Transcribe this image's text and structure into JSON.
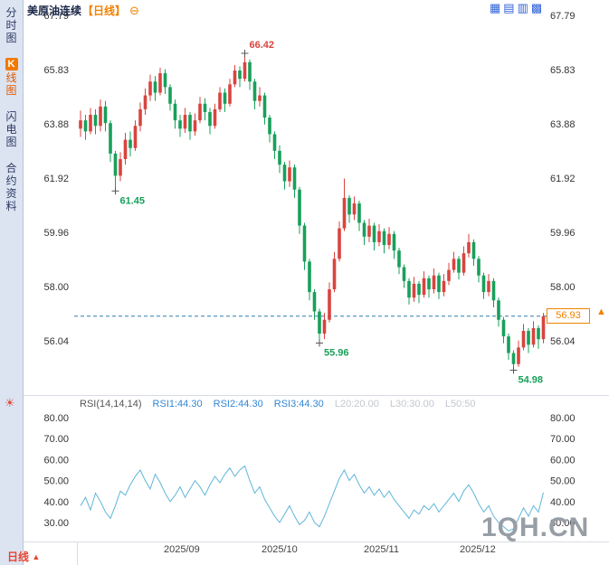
{
  "title": {
    "instrument": "美原油连续",
    "period": "【日线】"
  },
  "icons": {
    "collapse": "⊖",
    "sun": "☀",
    "arrow_up": "▲",
    "layouts": [
      "▦",
      "▤",
      "▥",
      "▩"
    ]
  },
  "sidebar": {
    "items": [
      {
        "label": "分时图"
      },
      {
        "label": "K线图",
        "k": "K",
        "rest": "线图",
        "active": true
      },
      {
        "label": "闪电图"
      },
      {
        "label": "合约资料"
      }
    ]
  },
  "rsi_header": {
    "name": "RSI(14,14,14)",
    "rsi1": "RSI1:44.30",
    "rsi2": "RSI2:44.30",
    "rsi3": "RSI3:44.30",
    "l20": "L20:20.00",
    "l30": "L30:30.00",
    "l50": "L50:50"
  },
  "price_marker": {
    "value": "56.93",
    "color": "#f08200"
  },
  "bottom_bar": {
    "period_label": "日线",
    "arrow": "▲"
  },
  "watermark": "1QH.CN",
  "chart_data": {
    "type": "candlestick+line",
    "main": {
      "title": "美原油连续 日线",
      "y_ticks": [
        "67.79",
        "65.83",
        "63.88",
        "61.92",
        "59.96",
        "58.00",
        "56.04"
      ],
      "ylim": [
        54.6,
        67.79
      ],
      "up_color": "#d9443f",
      "down_color": "#18a05a",
      "current_price": 56.93,
      "current_price_line_color": "#2e7fae",
      "annotations": [
        {
          "text": "66.42",
          "index": 33,
          "pos": "high",
          "color": "#d9443f"
        },
        {
          "text": "61.45",
          "index": 7,
          "pos": "low",
          "color": "#18a05a"
        },
        {
          "text": "55.96",
          "index": 48,
          "pos": "low",
          "color": "#18a05a"
        },
        {
          "text": "54.98",
          "index": 87,
          "pos": "low",
          "color": "#18a05a"
        }
      ],
      "candles": [
        [
          63.7,
          64.35,
          63.4,
          64.0
        ],
        [
          64.0,
          64.2,
          63.3,
          63.6
        ],
        [
          63.6,
          64.45,
          63.5,
          64.2
        ],
        [
          64.2,
          64.4,
          63.5,
          63.8
        ],
        [
          63.8,
          64.75,
          63.6,
          64.5
        ],
        [
          64.5,
          64.7,
          63.6,
          63.9
        ],
        [
          63.9,
          64.0,
          62.5,
          62.8
        ],
        [
          62.8,
          62.9,
          61.45,
          62.0
        ],
        [
          62.0,
          62.85,
          61.8,
          62.6
        ],
        [
          62.6,
          63.55,
          62.4,
          63.3
        ],
        [
          63.3,
          63.6,
          62.7,
          63.0
        ],
        [
          63.0,
          64.0,
          62.9,
          63.8
        ],
        [
          63.8,
          64.65,
          63.6,
          64.4
        ],
        [
          64.4,
          65.15,
          64.2,
          64.9
        ],
        [
          64.9,
          65.65,
          64.7,
          65.4
        ],
        [
          65.4,
          65.6,
          64.7,
          65.0
        ],
        [
          65.0,
          65.9,
          64.9,
          65.7
        ],
        [
          65.7,
          65.85,
          64.95,
          65.2
        ],
        [
          65.2,
          65.3,
          64.35,
          64.6
        ],
        [
          64.6,
          64.75,
          63.7,
          64.0
        ],
        [
          64.0,
          64.2,
          63.4,
          63.7
        ],
        [
          63.7,
          64.45,
          63.55,
          64.2
        ],
        [
          64.2,
          64.3,
          63.3,
          63.6
        ],
        [
          63.6,
          64.25,
          63.45,
          64.0
        ],
        [
          64.0,
          64.85,
          63.9,
          64.6
        ],
        [
          64.6,
          64.8,
          64.0,
          64.3
        ],
        [
          64.3,
          64.45,
          63.5,
          63.8
        ],
        [
          63.8,
          64.6,
          63.7,
          64.4
        ],
        [
          64.4,
          65.2,
          64.3,
          65.0
        ],
        [
          65.0,
          65.15,
          64.3,
          64.6
        ],
        [
          64.6,
          65.5,
          64.5,
          65.3
        ],
        [
          65.3,
          66.0,
          65.2,
          65.8
        ],
        [
          65.8,
          65.95,
          65.2,
          65.5
        ],
        [
          65.5,
          66.42,
          65.4,
          66.1
        ],
        [
          66.1,
          66.2,
          65.1,
          65.4
        ],
        [
          65.4,
          65.5,
          64.4,
          64.7
        ],
        [
          64.7,
          65.2,
          64.5,
          64.9
        ],
        [
          64.9,
          65.0,
          63.85,
          64.1
        ],
        [
          64.1,
          64.2,
          63.2,
          63.5
        ],
        [
          63.5,
          63.6,
          62.6,
          62.9
        ],
        [
          62.9,
          63.1,
          62.1,
          62.4
        ],
        [
          62.4,
          62.5,
          61.5,
          61.8
        ],
        [
          61.8,
          62.55,
          61.6,
          62.3
        ],
        [
          62.3,
          62.4,
          61.2,
          61.5
        ],
        [
          61.5,
          61.6,
          59.9,
          60.2
        ],
        [
          60.2,
          60.3,
          58.6,
          58.9
        ],
        [
          58.9,
          59.0,
          57.5,
          57.8
        ],
        [
          57.8,
          57.9,
          56.8,
          57.1
        ],
        [
          57.1,
          57.2,
          55.96,
          56.3
        ],
        [
          56.3,
          57.05,
          56.1,
          56.8
        ],
        [
          56.8,
          58.15,
          56.7,
          57.9
        ],
        [
          57.9,
          59.25,
          57.8,
          59.0
        ],
        [
          59.0,
          60.35,
          58.9,
          60.1
        ],
        [
          60.1,
          61.9,
          60.0,
          61.2
        ],
        [
          61.2,
          61.3,
          60.3,
          60.6
        ],
        [
          60.6,
          61.25,
          60.4,
          61.0
        ],
        [
          61.0,
          61.1,
          60.0,
          60.3
        ],
        [
          60.3,
          60.4,
          59.5,
          59.8
        ],
        [
          59.8,
          60.45,
          59.6,
          60.2
        ],
        [
          60.2,
          60.3,
          59.3,
          59.6
        ],
        [
          59.6,
          60.25,
          59.45,
          60.0
        ],
        [
          60.0,
          60.1,
          59.2,
          59.5
        ],
        [
          59.5,
          60.15,
          59.35,
          59.9
        ],
        [
          59.9,
          60.0,
          59.0,
          59.3
        ],
        [
          59.3,
          59.4,
          58.45,
          58.7
        ],
        [
          58.7,
          58.8,
          57.95,
          58.2
        ],
        [
          58.2,
          58.3,
          57.35,
          57.6
        ],
        [
          57.6,
          58.35,
          57.45,
          58.1
        ],
        [
          58.1,
          58.2,
          57.4,
          57.7
        ],
        [
          57.7,
          58.55,
          57.6,
          58.3
        ],
        [
          58.3,
          58.4,
          57.6,
          57.9
        ],
        [
          57.9,
          58.65,
          57.75,
          58.4
        ],
        [
          58.4,
          58.5,
          57.55,
          57.8
        ],
        [
          57.8,
          58.45,
          57.65,
          58.2
        ],
        [
          58.2,
          58.85,
          58.05,
          58.6
        ],
        [
          58.6,
          59.25,
          58.5,
          59.0
        ],
        [
          59.0,
          59.1,
          58.25,
          58.5
        ],
        [
          58.5,
          59.45,
          58.4,
          59.2
        ],
        [
          59.2,
          59.9,
          59.05,
          59.6
        ],
        [
          59.6,
          59.7,
          58.75,
          59.0
        ],
        [
          59.0,
          59.1,
          58.15,
          58.4
        ],
        [
          58.4,
          58.5,
          57.55,
          57.8
        ],
        [
          57.8,
          58.45,
          57.65,
          58.2
        ],
        [
          58.2,
          58.3,
          57.25,
          57.5
        ],
        [
          57.5,
          57.6,
          56.55,
          56.8
        ],
        [
          56.8,
          56.9,
          55.95,
          56.2
        ],
        [
          56.2,
          56.3,
          55.35,
          55.6
        ],
        [
          55.6,
          55.7,
          54.98,
          55.2
        ],
        [
          55.2,
          56.05,
          55.1,
          55.8
        ],
        [
          55.8,
          56.65,
          55.7,
          56.4
        ],
        [
          56.4,
          56.5,
          55.6,
          55.9
        ],
        [
          55.9,
          56.75,
          55.8,
          56.5
        ],
        [
          56.5,
          56.6,
          55.75,
          56.1
        ],
        [
          56.1,
          57.05,
          55.95,
          56.93
        ]
      ]
    },
    "rsi": {
      "y_ticks": [
        "80.00",
        "70.00",
        "60.00",
        "50.00",
        "40.00",
        "30.00"
      ],
      "ylim": [
        26,
        85
      ],
      "line_color": "#5fb6d9",
      "values": [
        38,
        42,
        36,
        44,
        40,
        35,
        32,
        38,
        45,
        43,
        48,
        52,
        55,
        50,
        46,
        53,
        49,
        44,
        40,
        43,
        47,
        42,
        46,
        50,
        47,
        43,
        48,
        52,
        49,
        53,
        56,
        52,
        55,
        57,
        50,
        44,
        47,
        41,
        37,
        33,
        30,
        34,
        38,
        33,
        29,
        31,
        35,
        30,
        28,
        33,
        39,
        45,
        51,
        55,
        50,
        53,
        48,
        44,
        47,
        43,
        46,
        42,
        45,
        41,
        38,
        35,
        32,
        36,
        34,
        38,
        36,
        39,
        35,
        38,
        41,
        44,
        40,
        45,
        48,
        44,
        39,
        35,
        38,
        33,
        30,
        28,
        26,
        27,
        32,
        37,
        33,
        38,
        35,
        44.3
      ]
    },
    "x_axis_labels": [
      "2025/09",
      "2025/10",
      "2025/11",
      "2025/12"
    ]
  }
}
